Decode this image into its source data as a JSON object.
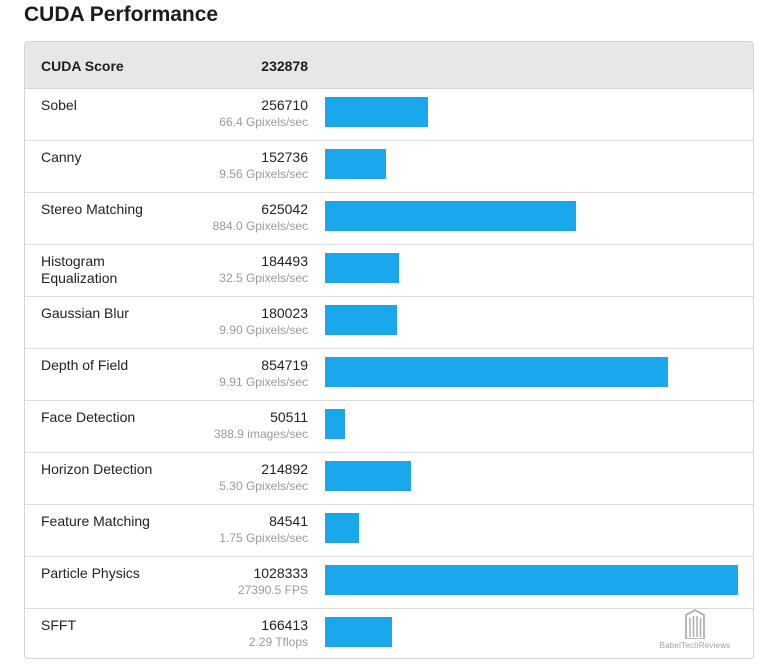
{
  "title": "CUDA Performance",
  "score": {
    "label": "CUDA Score",
    "value": "232878"
  },
  "max_score": 1028333,
  "tests": [
    {
      "name": "Sobel",
      "score": "256710",
      "score_num": 256710,
      "rate": "66.4 Gpixels/sec"
    },
    {
      "name": "Canny",
      "score": "152736",
      "score_num": 152736,
      "rate": "9.56 Gpixels/sec"
    },
    {
      "name": "Stereo Matching",
      "score": "625042",
      "score_num": 625042,
      "rate": "884.0 Gpixels/sec"
    },
    {
      "name": "Histogram Equalization",
      "score": "184493",
      "score_num": 184493,
      "rate": "32.5 Gpixels/sec"
    },
    {
      "name": "Gaussian Blur",
      "score": "180023",
      "score_num": 180023,
      "rate": "9.90 Gpixels/sec"
    },
    {
      "name": "Depth of Field",
      "score": "854719",
      "score_num": 854719,
      "rate": "9.91 Gpixels/sec"
    },
    {
      "name": "Face Detection",
      "score": "50511",
      "score_num": 50511,
      "rate": "388.9 images/sec"
    },
    {
      "name": "Horizon Detection",
      "score": "214892",
      "score_num": 214892,
      "rate": "5.30 Gpixels/sec"
    },
    {
      "name": "Feature Matching",
      "score": "84541",
      "score_num": 84541,
      "rate": "1.75 Gpixels/sec"
    },
    {
      "name": "Particle Physics",
      "score": "1028333",
      "score_num": 1028333,
      "rate": "27390.5 FPS"
    },
    {
      "name": "SFFT",
      "score": "166413",
      "score_num": 166413,
      "rate": "2.29 Tflops"
    }
  ],
  "bar_color": "#1aa7ec",
  "watermark": {
    "icon": "building-icon",
    "text": "BabelTechReviews"
  }
}
